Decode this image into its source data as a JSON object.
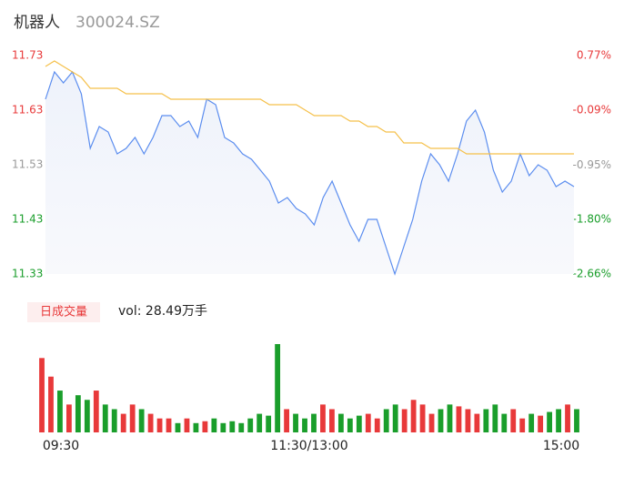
{
  "chart_data": {
    "type": "intraday",
    "title": "机器人",
    "subtitle": "300024.SZ",
    "legend_label": "日成交量",
    "volume_label": "vol: 28.49万手",
    "time_labels": [
      "09:30",
      "11:30/13:00",
      "15:00"
    ],
    "ylim": [
      11.33,
      11.73
    ],
    "yticks": [
      11.73,
      11.63,
      11.53,
      11.43,
      11.33
    ],
    "ytick_colors": [
      "#e8393a",
      "#e8393a",
      "#999999",
      "#1a9e2b",
      "#1a9e2b"
    ],
    "y2lim": [
      -2.66,
      0.77
    ],
    "y2ticks": [
      {
        "value": 0.77,
        "label": "0.77%"
      },
      {
        "value": -0.09,
        "label": "-0.09%"
      },
      {
        "value": -0.95,
        "label": "-0.95%"
      },
      {
        "value": -1.8,
        "label": "-1.80%"
      },
      {
        "value": -2.66,
        "label": "-2.66%"
      }
    ],
    "series": [
      {
        "name": "price",
        "color": "#5b8def",
        "values": [
          11.65,
          11.7,
          11.68,
          11.7,
          11.66,
          11.56,
          11.6,
          11.59,
          11.55,
          11.56,
          11.58,
          11.55,
          11.58,
          11.62,
          11.62,
          11.6,
          11.61,
          11.58,
          11.65,
          11.64,
          11.58,
          11.57,
          11.55,
          11.54,
          11.52,
          11.5,
          11.46,
          11.47,
          11.45,
          11.44,
          11.42,
          11.47,
          11.5,
          11.46,
          11.42,
          11.39,
          11.43,
          11.43,
          11.38,
          11.33,
          11.38,
          11.43,
          11.5,
          11.55,
          11.53,
          11.5,
          11.55,
          11.61,
          11.63,
          11.59,
          11.52,
          11.48,
          11.5,
          11.55,
          11.51,
          11.53,
          11.52,
          11.49,
          11.5,
          11.49
        ]
      },
      {
        "name": "average",
        "color": "#f5c04a",
        "values": [
          11.71,
          11.72,
          11.71,
          11.7,
          11.69,
          11.67,
          11.67,
          11.67,
          11.67,
          11.66,
          11.66,
          11.66,
          11.66,
          11.66,
          11.65,
          11.65,
          11.65,
          11.65,
          11.65,
          11.65,
          11.65,
          11.65,
          11.65,
          11.65,
          11.65,
          11.64,
          11.64,
          11.64,
          11.64,
          11.63,
          11.62,
          11.62,
          11.62,
          11.62,
          11.61,
          11.61,
          11.6,
          11.6,
          11.59,
          11.59,
          11.57,
          11.57,
          11.57,
          11.56,
          11.56,
          11.56,
          11.56,
          11.55,
          11.55,
          11.55,
          11.55,
          11.55,
          11.55,
          11.55,
          11.55,
          11.55,
          11.55,
          11.55,
          11.55,
          11.55
        ]
      }
    ],
    "volume": [
      80,
      60,
      45,
      30,
      40,
      35,
      45,
      30,
      25,
      20,
      30,
      25,
      20,
      15,
      15,
      10,
      15,
      10,
      12,
      15,
      10,
      12,
      10,
      15,
      20,
      18,
      95,
      25,
      20,
      15,
      20,
      30,
      25,
      20,
      15,
      18,
      20,
      15,
      25,
      30,
      25,
      35,
      30,
      20,
      25,
      30,
      28,
      25,
      20,
      25,
      30,
      20,
      25,
      15,
      20,
      18,
      22,
      25,
      30,
      25
    ],
    "up_color": "#e8393a",
    "down_color": "#1a9e2b"
  }
}
